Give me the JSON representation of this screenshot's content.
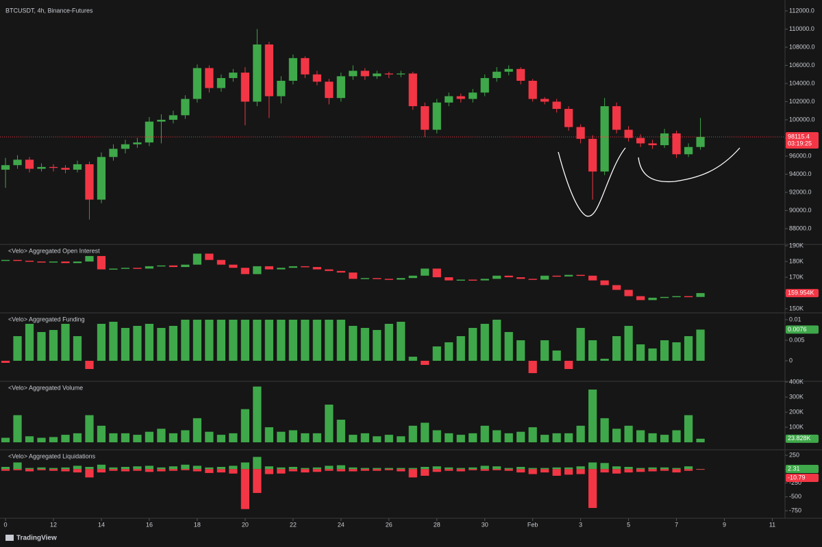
{
  "chart_data": [
    {
      "type": "candlestick",
      "title": "BTCUSDT, 4h, Binance-Futures",
      "up_color": "#3fa84a",
      "down_color": "#f23645",
      "last_label_color": "#f23645",
      "countdown": "03:19:25",
      "x": [
        10,
        10.5,
        11,
        11.5,
        12,
        12.5,
        13,
        13.5,
        14,
        14.5,
        15,
        15.5,
        16,
        16.5,
        17,
        17.5,
        18,
        18.5,
        19,
        19.5,
        20,
        20.5,
        21,
        21.5,
        22,
        22.5,
        23,
        23.5,
        24,
        24.5,
        25,
        25.5,
        26,
        26.5,
        27,
        27.5,
        28,
        28.5,
        29,
        29.5,
        30,
        30.5,
        31,
        31.5,
        32,
        32.5,
        33,
        33.5,
        34,
        34.5,
        35,
        35.5,
        36,
        36.5,
        37,
        37.5,
        38,
        38.5,
        39
      ],
      "open": [
        94500,
        95000,
        95600,
        94600,
        94800,
        94700,
        94500,
        95100,
        91200,
        95900,
        96800,
        97300,
        97500,
        99800,
        100000,
        100500,
        102300,
        105700,
        103500,
        104600,
        105200,
        102000,
        108300,
        102600,
        104300,
        106800,
        105000,
        104200,
        102400,
        104800,
        105400,
        104800,
        105100,
        105000,
        105100,
        101500,
        98900,
        101900,
        102600,
        102300,
        103000,
        104600,
        105300,
        105600,
        104300,
        102300,
        102000,
        101200,
        99200,
        97900,
        94300,
        101500,
        98900,
        98000,
        97400,
        97200,
        98500,
        96200,
        97000
      ],
      "high": [
        95800,
        96100,
        95900,
        95200,
        95100,
        95000,
        95500,
        95400,
        96400,
        97300,
        97800,
        98000,
        100300,
        100600,
        101000,
        102700,
        106100,
        106000,
        105000,
        105600,
        105800,
        110000,
        108600,
        104800,
        107200,
        107000,
        105400,
        104500,
        105200,
        106000,
        105700,
        105400,
        105300,
        105400,
        105300,
        101900,
        102300,
        103000,
        102900,
        103400,
        105000,
        105800,
        106000,
        105800,
        104500,
        102500,
        102300,
        101500,
        99500,
        98300,
        102400,
        101900,
        99300,
        98400,
        97800,
        99000,
        98800,
        97400,
        100200
      ],
      "low": [
        92500,
        94600,
        94200,
        94300,
        94300,
        94100,
        94200,
        89000,
        90800,
        95500,
        96300,
        96900,
        97100,
        97400,
        99600,
        100100,
        101900,
        103000,
        103100,
        104200,
        99400,
        101500,
        100200,
        101800,
        103900,
        104600,
        103800,
        101700,
        102000,
        104400,
        104400,
        104500,
        104600,
        104700,
        101100,
        98100,
        98500,
        101500,
        101900,
        101900,
        102600,
        104200,
        104900,
        103900,
        102000,
        101700,
        100800,
        98800,
        97400,
        91200,
        93900,
        98500,
        97600,
        97000,
        96800,
        96900,
        95800,
        95900,
        96700
      ],
      "close": [
        95000,
        95600,
        94600,
        94800,
        94700,
        94500,
        95100,
        91200,
        95900,
        96800,
        97300,
        97500,
        99800,
        100000,
        100500,
        102300,
        105700,
        103500,
        104600,
        105200,
        102000,
        108300,
        102600,
        104300,
        106800,
        105000,
        104200,
        102400,
        104800,
        105400,
        104800,
        105100,
        105000,
        105100,
        101500,
        98900,
        101900,
        102600,
        102300,
        103000,
        104600,
        105300,
        105600,
        104300,
        102300,
        102000,
        101200,
        99200,
        97900,
        94300,
        101500,
        98900,
        98000,
        97400,
        97200,
        98500,
        96200,
        97000,
        98115.4
      ],
      "xlim": [
        9.77,
        42.5
      ],
      "xticks": [
        {
          "value": 10,
          "label": "0"
        },
        12,
        14,
        16,
        18,
        20,
        22,
        24,
        26,
        28,
        30,
        {
          "value": 32,
          "label": "Feb"
        },
        {
          "value": 34,
          "label": "3"
        },
        {
          "value": 36,
          "label": "5"
        },
        {
          "value": 38,
          "label": "7"
        },
        {
          "value": 40,
          "label": "9"
        },
        {
          "value": 42,
          "label": "11"
        }
      ],
      "ylim": [
        86340,
        112600
      ],
      "yticks": [
        {
          "value": 88000,
          "label": "88000.0"
        },
        {
          "value": 90000,
          "label": "90000.0"
        },
        {
          "value": 92000,
          "label": "92000.0"
        },
        {
          "value": 94000,
          "label": "94000.0"
        },
        {
          "value": 96000,
          "label": "96000.0"
        },
        {
          "value": 98000,
          "label": "98000.0"
        },
        {
          "value": 100000,
          "label": "100000.0"
        },
        {
          "value": 102000,
          "label": "102000.0"
        },
        {
          "value": 104000,
          "label": "104000.0"
        },
        {
          "value": 106000,
          "label": "106000.0"
        },
        {
          "value": 108000,
          "label": "108000.0"
        },
        {
          "value": 110000,
          "label": "110000.0"
        },
        {
          "value": 112000,
          "label": "112000.0"
        }
      ]
    },
    {
      "type": "candlestick-close",
      "title": "<Velo> Aggregated Open Interest",
      "up_color": "#3fa84a",
      "down_color": "#f23645",
      "last_label_color": "#f23645",
      "last_value_label": "159.954K",
      "values": [
        181000,
        180500,
        180000,
        179500,
        180000,
        179000,
        180000,
        183500,
        175000,
        175500,
        176000,
        175500,
        177000,
        177500,
        176500,
        178000,
        185000,
        181000,
        178000,
        176000,
        172000,
        177000,
        175000,
        176000,
        177000,
        176500,
        175000,
        174000,
        173000,
        169000,
        169500,
        169000,
        168500,
        169500,
        171000,
        175500,
        170000,
        168000,
        168500,
        168000,
        169000,
        171000,
        170000,
        169000,
        168500,
        171000,
        170500,
        171500,
        171000,
        168000,
        165000,
        162000,
        158000,
        155500,
        157000,
        157500,
        158000,
        157500,
        159954
      ],
      "ylim": [
        147830,
        190430
      ],
      "yticks": [
        {
          "value": 150000,
          "label": "150K"
        },
        {
          "value": 160000,
          "label": "160K"
        },
        {
          "value": 170000,
          "label": "170K"
        },
        {
          "value": 180000,
          "label": "180K"
        },
        {
          "value": 190000,
          "label": "190K"
        }
      ]
    },
    {
      "type": "bar",
      "title": "<Velo> Aggregated Funding",
      "color": "#3fa84a",
      "negative_color": "#f23645",
      "last_label_color": "#3fa84a",
      "values": [
        -0.0005,
        0.006,
        0.009,
        0.007,
        0.0075,
        0.009,
        0.006,
        -0.002,
        0.009,
        0.0095,
        0.008,
        0.0085,
        0.009,
        0.008,
        0.0085,
        0.01,
        0.01,
        0.01,
        0.01,
        0.01,
        0.01,
        0.01,
        0.01,
        0.01,
        0.01,
        0.01,
        0.01,
        0.01,
        0.01,
        0.0085,
        0.008,
        0.0075,
        0.009,
        0.0095,
        0.001,
        -0.001,
        0.0035,
        0.0045,
        0.006,
        0.008,
        0.009,
        0.01,
        0.007,
        0.005,
        -0.003,
        0.005,
        0.0025,
        -0.002,
        0.008,
        0.005,
        0.0005,
        0.006,
        0.0085,
        0.004,
        0.003,
        0.005,
        0.0045,
        0.006,
        0.0076
      ],
      "ylim": [
        -0.00483,
        0.0115
      ],
      "yticks": [
        0,
        0.005,
        0.01
      ]
    },
    {
      "type": "bar",
      "title": "<Velo> Aggregated Volume",
      "color": "#3fa84a",
      "negative_color": "#f23645",
      "last_label_color": "#3fa84a",
      "last_value_label": "23.828K",
      "values": [
        30000,
        180000,
        40000,
        30000,
        35000,
        50000,
        60000,
        180000,
        110000,
        60000,
        60000,
        50000,
        70000,
        90000,
        60000,
        80000,
        160000,
        70000,
        50000,
        60000,
        220000,
        370000,
        100000,
        70000,
        80000,
        60000,
        60000,
        250000,
        150000,
        50000,
        60000,
        40000,
        50000,
        40000,
        110000,
        130000,
        80000,
        60000,
        50000,
        60000,
        110000,
        80000,
        60000,
        70000,
        100000,
        50000,
        60000,
        60000,
        110000,
        350000,
        160000,
        90000,
        110000,
        80000,
        60000,
        50000,
        80000,
        180000,
        23828
      ],
      "ylim": [
        -45000,
        400000
      ],
      "yticks": [
        {
          "value": 100000,
          "label": "100K"
        },
        {
          "value": 200000,
          "label": "200K"
        },
        {
          "value": 300000,
          "label": "300K"
        },
        {
          "value": 400000,
          "label": "400K"
        }
      ]
    },
    {
      "type": "bar",
      "title": "<Velo> Aggregated Liquidations",
      "series": [
        {
          "color": "#3fa84a",
          "values": [
            40,
            120,
            20,
            30,
            20,
            30,
            60,
            40,
            80,
            30,
            40,
            50,
            60,
            30,
            50,
            80,
            60,
            30,
            40,
            60,
            120,
            220,
            50,
            30,
            40,
            20,
            30,
            60,
            70,
            30,
            20,
            20,
            20,
            20,
            20,
            40,
            50,
            30,
            20,
            30,
            60,
            50,
            20,
            40,
            20,
            20,
            30,
            30,
            50,
            120,
            110,
            50,
            40,
            20,
            30,
            30,
            20,
            50,
            2.31
          ]
        },
        {
          "color": "#f23645",
          "values": [
            -30,
            -20,
            -40,
            -20,
            -30,
            -40,
            -60,
            -150,
            -60,
            -30,
            -40,
            -30,
            -50,
            -40,
            -30,
            -20,
            -40,
            -70,
            -60,
            -80,
            -720,
            -430,
            -90,
            -80,
            -40,
            -60,
            -50,
            -30,
            -40,
            -40,
            -30,
            -30,
            -20,
            -40,
            -150,
            -120,
            -50,
            -30,
            -40,
            -20,
            -30,
            -20,
            -30,
            -60,
            -90,
            -60,
            -120,
            -100,
            -90,
            -700,
            -60,
            -80,
            -60,
            -50,
            -40,
            -30,
            -60,
            -30,
            -10.79
          ]
        }
      ],
      "ylim": [
        -873,
        336
      ],
      "yticks": [
        -750,
        -500,
        -250,
        0,
        250
      ]
    }
  ],
  "watermark": "TradingView"
}
